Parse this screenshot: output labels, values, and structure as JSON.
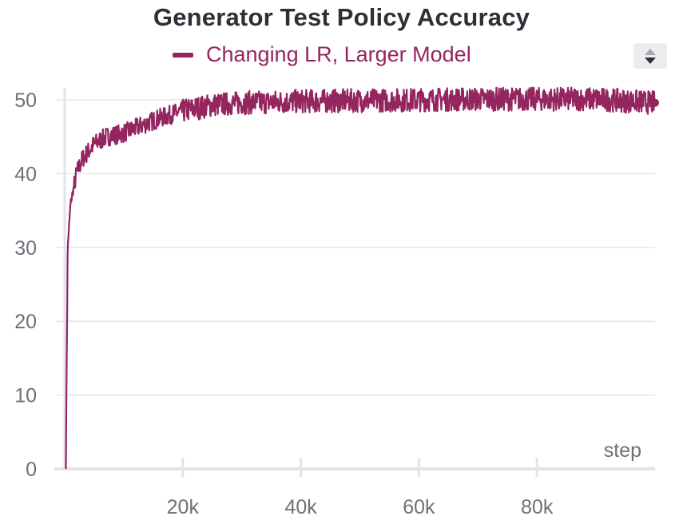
{
  "chart_data": {
    "type": "line",
    "title": "Generator Test Policy Accuracy",
    "xlabel": "step",
    "ylabel": "",
    "xlim": [
      0,
      100000
    ],
    "ylim": [
      0,
      52
    ],
    "xticks": [
      20000,
      40000,
      60000,
      80000
    ],
    "xtick_labels": [
      "20k",
      "40k",
      "60k",
      "80k"
    ],
    "yticks": [
      0,
      10,
      20,
      30,
      40,
      50
    ],
    "ytick_labels": [
      "0",
      "10",
      "20",
      "30",
      "40",
      "50"
    ],
    "grid": true,
    "legend_position": "top-center",
    "series": [
      {
        "name": "Changing LR, Larger Model",
        "color": "#94255f",
        "x": [
          200,
          500,
          1000,
          1500,
          2000,
          3000,
          4000,
          5000,
          7000,
          10000,
          13000,
          16000,
          20000,
          25000,
          30000,
          40000,
          50000,
          60000,
          70000,
          80000,
          90000,
          100000
        ],
        "y": [
          0.5,
          30,
          36,
          38,
          40,
          42,
          43,
          44,
          45,
          45.5,
          46.5,
          47.5,
          48.5,
          49.3,
          49.6,
          49.8,
          49.9,
          50.0,
          50.1,
          50.1,
          50.1,
          49.6
        ]
      }
    ]
  },
  "legend": {
    "toggle_icon": "sort-arrows-icon"
  }
}
